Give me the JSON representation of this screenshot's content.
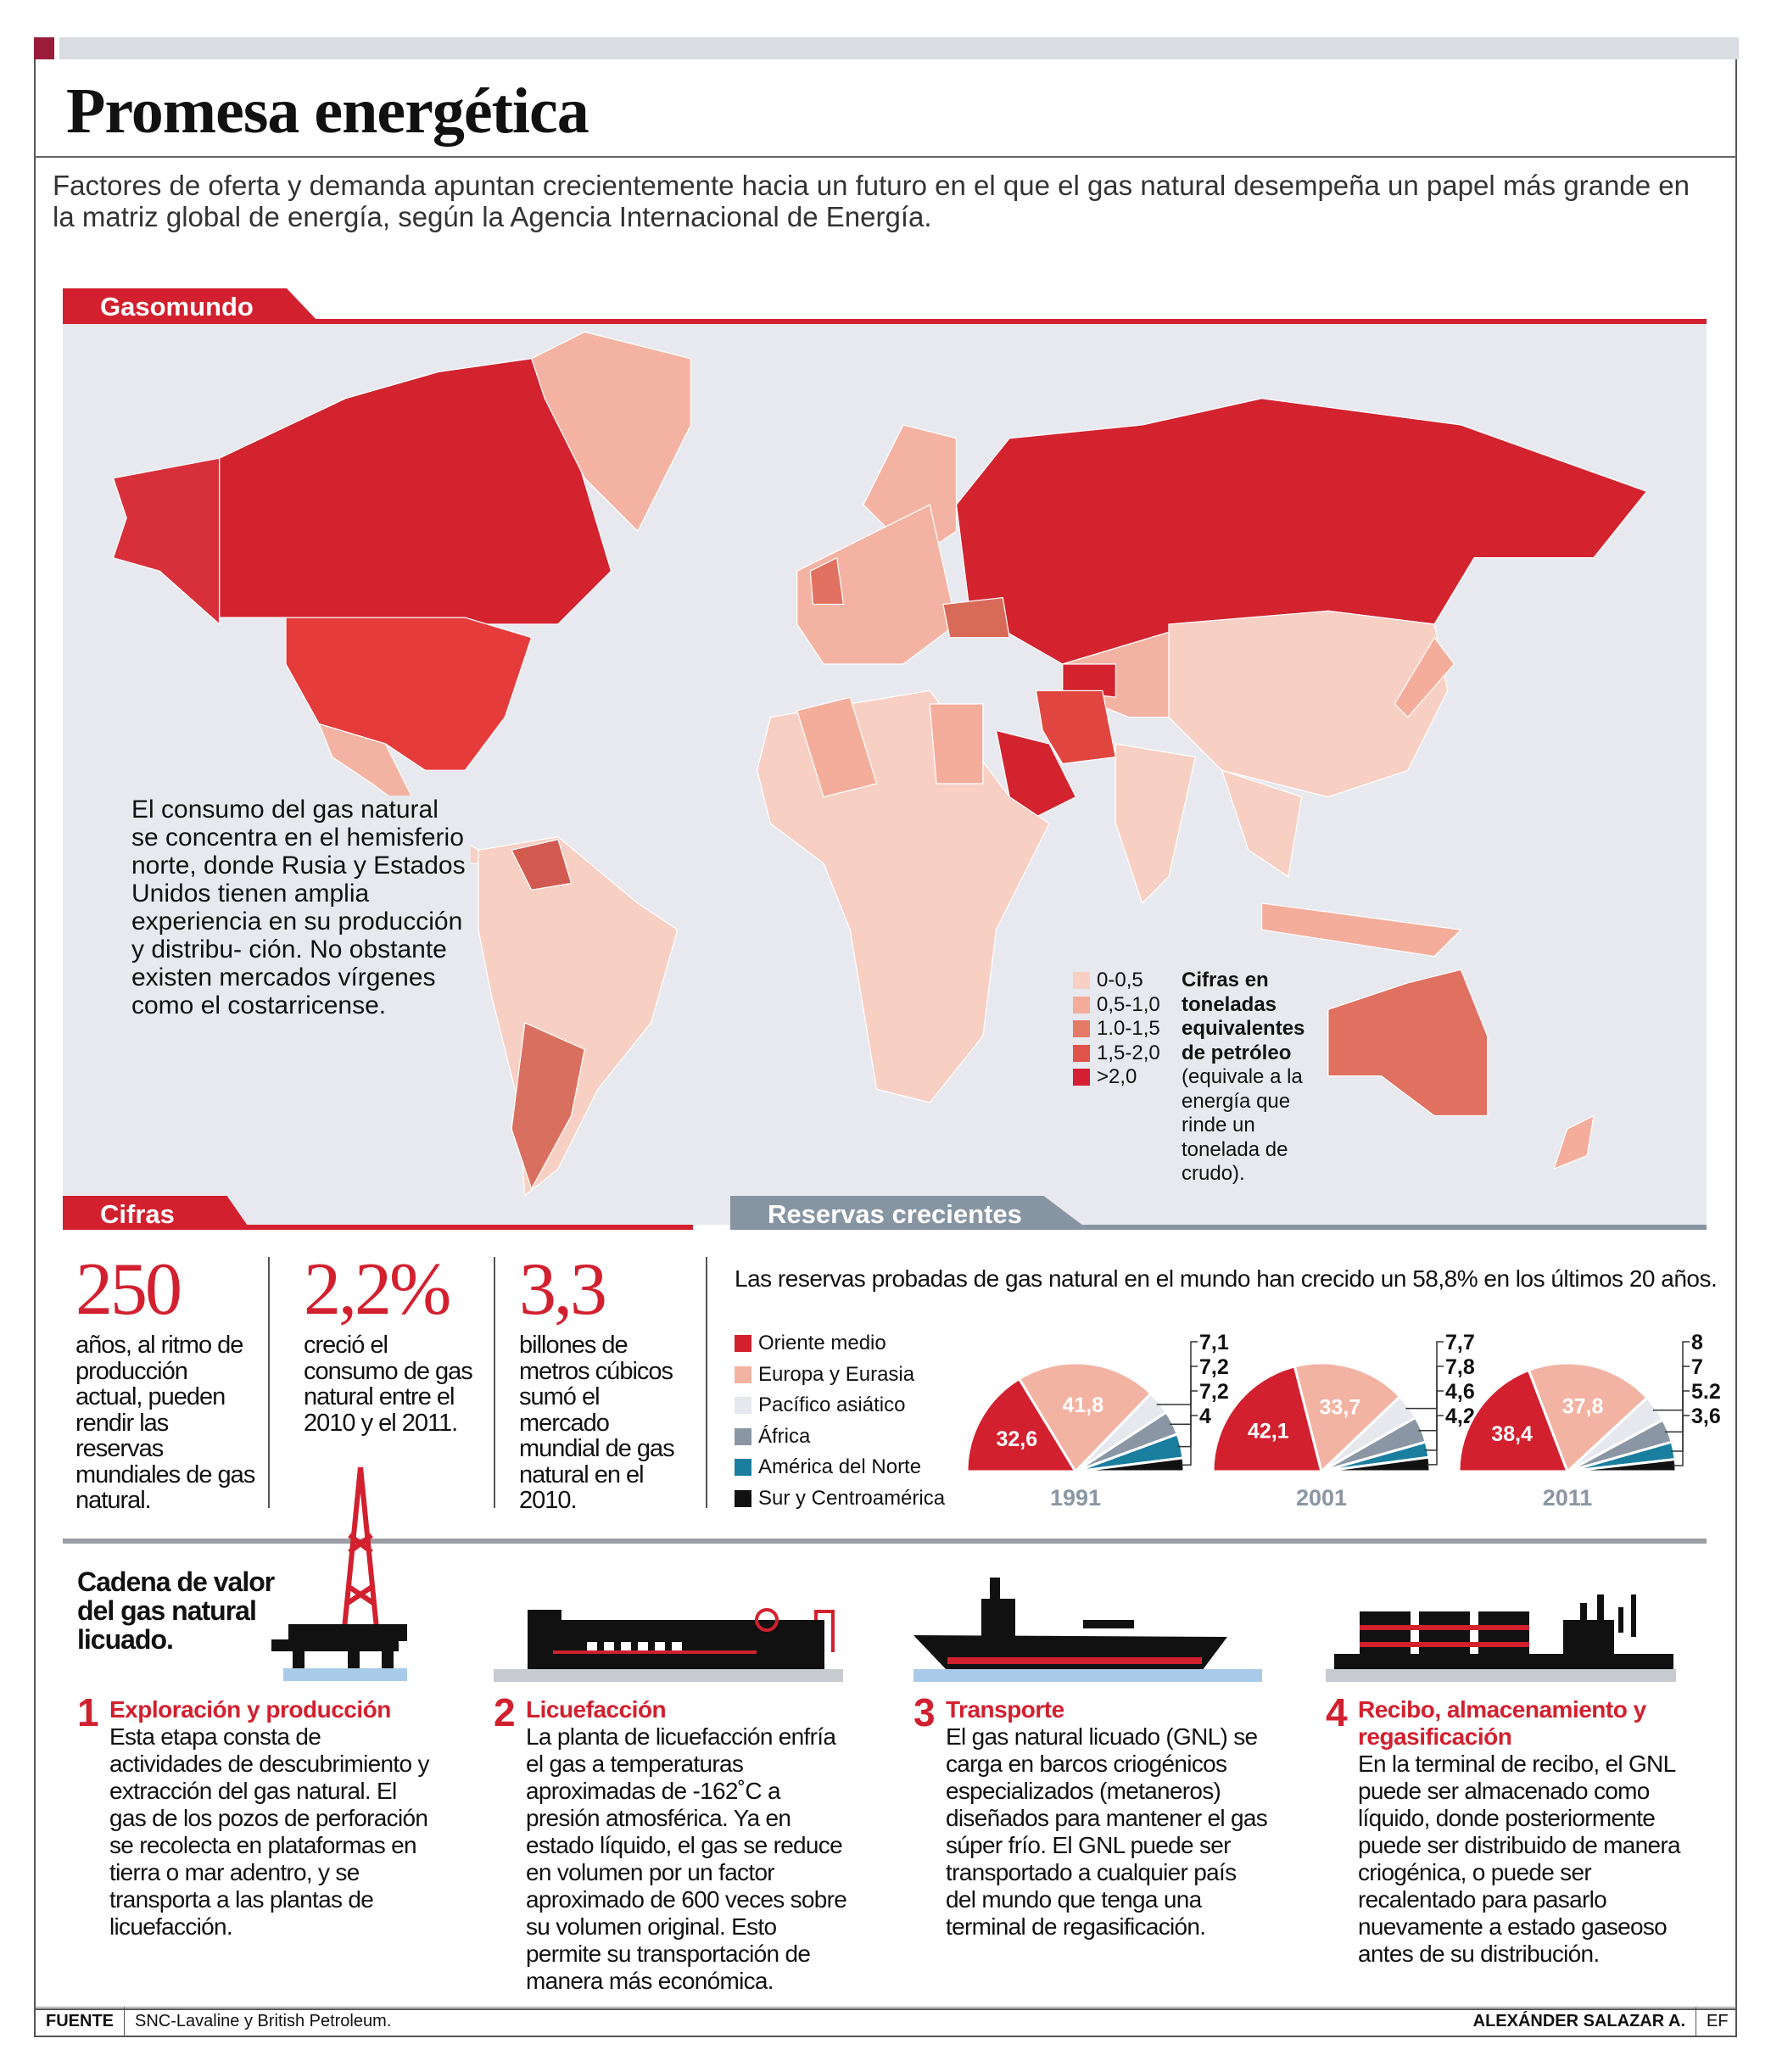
{
  "title": "Promesa energética",
  "intro": "Factores de oferta y demanda apuntan crecientemente hacia un futuro en el que el gas natural desempeña un papel más grande en la matriz global de energía, según la Agencia Internacional de Energía.",
  "map": {
    "section_label": "Gasomundo",
    "text": "El consumo del gas natural se concentra en el hemisferio norte, donde Rusia y Estados Unidos tienen amplia experiencia en su producción y distribu- ción. No obstante existen mercados vírgenes como el costarricense.",
    "legend": [
      {
        "label": "0-0,5",
        "color": "#f8cfc3"
      },
      {
        "label": "0,5-1,0",
        "color": "#f4ad9b"
      },
      {
        "label": "1.0-1,5",
        "color": "#e57a66"
      },
      {
        "label": "1,5-2,0",
        "color": "#e0534b"
      },
      {
        "label": ">2,0",
        "color": "#d41f35"
      }
    ],
    "legend_note_bold": "Cifras en toneladas equivalentes de petróleo",
    "legend_note": "(equivale a la energía que rinde un tonelada de crudo)."
  },
  "cifras": {
    "section_label": "Cifras",
    "items": [
      {
        "value": "250",
        "text": "años, al ritmo de producción actual, pueden rendir las reservas mundiales de gas natural."
      },
      {
        "value": "2,2%",
        "text": "creció el consumo de gas natural entre el 2010 y el 2011."
      },
      {
        "value": "3,3",
        "text": "billones de metros cúbicos sumó el mercado mundial de gas natural en el 2010."
      }
    ]
  },
  "reservas": {
    "section_label": "Reservas crecientes",
    "text": "Las reservas probadas de gas natural en el mundo han crecido un 58,8% en los últimos 20 años."
  },
  "chart_data": {
    "type": "pie",
    "subtype": "semicircle",
    "categories": [
      "Oriente medio",
      "Europa y Eurasia",
      "Pacífico asiático",
      "África",
      "América del Norte",
      "Sur y Centroamérica"
    ],
    "colors": [
      "#d2202f",
      "#f3b3a3",
      "#e6e8ee",
      "#8a96a3",
      "#1a7e9f",
      "#111111"
    ],
    "series": [
      {
        "name": "1991",
        "values": [
          32.6,
          41.8,
          7.1,
          7.2,
          7.2,
          4
        ],
        "labels": [
          "32,6",
          "41,8",
          "7,1",
          "7,2",
          "7,2",
          "4"
        ]
      },
      {
        "name": "2001",
        "values": [
          42.1,
          33.7,
          7.7,
          7.8,
          4.6,
          4.2
        ],
        "labels": [
          "42,1",
          "33,7",
          "7,7",
          "7,8",
          "4,6",
          "4,2"
        ]
      },
      {
        "name": "2011",
        "values": [
          38.4,
          37.8,
          8,
          7,
          5.2,
          3.6
        ],
        "labels": [
          "38,4",
          "37,8",
          "8",
          "7",
          "5.2",
          "3,6"
        ]
      }
    ],
    "legend_position": "left"
  },
  "cadena": {
    "title": "Cadena de valor del gas natural licuado.",
    "steps": [
      {
        "num": "1",
        "title": "Exploración y producción",
        "text": "Esta etapa consta de actividades de descubrimiento y extracción del gas natural. El gas de los pozos de perforación se recolecta en plataformas en tierra o mar adentro, y se transporta a las plantas de licuefacción."
      },
      {
        "num": "2",
        "title": "Licuefacción",
        "text": "La planta de licuefacción enfría el gas a temperaturas aproximadas de -162˚C a presión atmosférica. Ya en estado líquido, el gas se reduce en volumen por un factor aproximado de 600 veces sobre su volumen original. Esto permite su transportación de manera más económica."
      },
      {
        "num": "3",
        "title": "Transporte",
        "text": "El gas natural licuado (GNL) se carga en barcos criogénicos especializados (metaneros) diseñados para mantener el gas súper frío. El GNL puede ser transportado a cualquier país del mundo que tenga una terminal de regasificación."
      },
      {
        "num": "4",
        "title": "Recibo, almacenamiento y regasificación",
        "text": "En la terminal de recibo, el GNL puede ser almacenado como líquido, donde posteriormente puede ser distribuido de manera criogénica, o puede ser recalentado para pasarlo nuevamente a estado gaseoso antes de su distribución."
      }
    ]
  },
  "footer": {
    "source_label": "FUENTE",
    "source": "SNC-Lavaline y British Petroleum.",
    "author": "ALEXÁNDER SALAZAR A.",
    "agency": "EF"
  }
}
